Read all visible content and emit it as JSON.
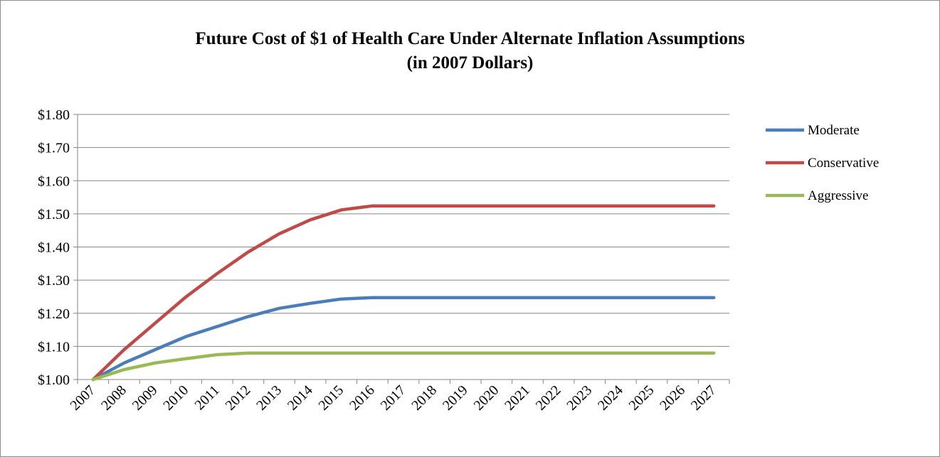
{
  "chart_data": {
    "type": "line",
    "title": "Future Cost of $1 of Health Care Under Alternate Inflation Assumptions",
    "subtitle": "(in 2007 Dollars)",
    "xlabel": "",
    "ylabel": "",
    "ylim": [
      1.0,
      1.8
    ],
    "y_ticks": [
      "$1.00",
      "$1.10",
      "$1.20",
      "$1.30",
      "$1.40",
      "$1.50",
      "$1.60",
      "$1.70",
      "$1.80"
    ],
    "x": [
      "2007",
      "2008",
      "2009",
      "2010",
      "2011",
      "2012",
      "2013",
      "2014",
      "2015",
      "2016",
      "2017",
      "2018",
      "2019",
      "2020",
      "2021",
      "2022",
      "2023",
      "2024",
      "2025",
      "2026",
      "2027"
    ],
    "grid": true,
    "legend_position": "right",
    "series": [
      {
        "name": "Moderate",
        "color": "#4a7ebb",
        "values": [
          1.0,
          1.05,
          1.09,
          1.13,
          1.16,
          1.19,
          1.215,
          1.23,
          1.243,
          1.247,
          1.247,
          1.247,
          1.247,
          1.247,
          1.247,
          1.247,
          1.247,
          1.247,
          1.247,
          1.247,
          1.247
        ]
      },
      {
        "name": "Conservative",
        "color": "#be4b48",
        "values": [
          1.0,
          1.09,
          1.17,
          1.25,
          1.32,
          1.385,
          1.44,
          1.482,
          1.512,
          1.524,
          1.524,
          1.524,
          1.524,
          1.524,
          1.524,
          1.524,
          1.524,
          1.524,
          1.524,
          1.524,
          1.524
        ]
      },
      {
        "name": "Aggressive",
        "color": "#98b954",
        "values": [
          1.0,
          1.03,
          1.05,
          1.063,
          1.075,
          1.08,
          1.08,
          1.08,
          1.08,
          1.08,
          1.08,
          1.08,
          1.08,
          1.08,
          1.08,
          1.08,
          1.08,
          1.08,
          1.08,
          1.08,
          1.08
        ]
      }
    ]
  }
}
